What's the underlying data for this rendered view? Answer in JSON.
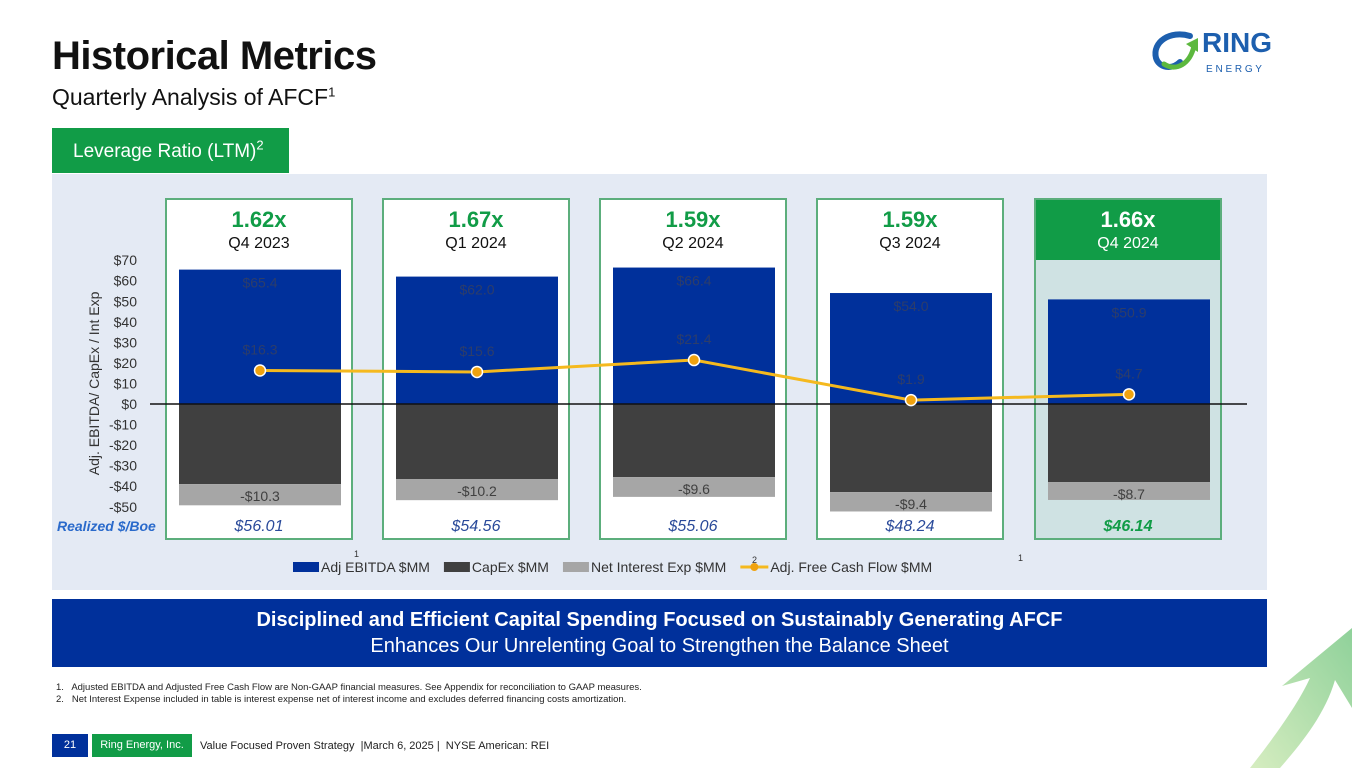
{
  "header": {
    "title": "Historical Metrics",
    "subtitle": "Quarterly Analysis of AFCF",
    "subtitle_sup": "1",
    "tag": "Leverage Ratio (LTM)",
    "tag_sup": "2"
  },
  "logo": {
    "icon": "ring-arrow-icon",
    "name": "RING",
    "tagline": "E N E R G Y"
  },
  "quarters": [
    {
      "leverage": "1.62x",
      "label": "Q4 2023",
      "realized": "$56.01",
      "highlight": false
    },
    {
      "leverage": "1.67x",
      "label": "Q1 2024",
      "realized": "$54.56",
      "highlight": false
    },
    {
      "leverage": "1.59x",
      "label": "Q2 2024",
      "realized": "$55.06",
      "highlight": false
    },
    {
      "leverage": "1.59x",
      "label": "Q3 2024",
      "realized": "$48.24",
      "highlight": false
    },
    {
      "leverage": "1.66x",
      "label": "Q4 2024",
      "realized": "$46.14",
      "highlight": true
    }
  ],
  "realized_label": "Realized $/Boe",
  "chart_data": {
    "type": "bar",
    "categories": [
      "Q4 2023",
      "Q1 2024",
      "Q2 2024",
      "Q3 2024",
      "Q4 2024"
    ],
    "ylabel": "Adj. EBITDA/ CapEx / Int Exp",
    "ylim": [
      -50,
      70
    ],
    "yticks": [
      70,
      60,
      50,
      40,
      30,
      20,
      10,
      0,
      -10,
      -20,
      -30,
      -40,
      -50
    ],
    "ytick_labels": [
      "$70",
      "$60",
      "$50",
      "$40",
      "$30",
      "$20",
      "$10",
      "$0",
      "-$10",
      "-$20",
      "-$30",
      "-$40",
      "-$50"
    ],
    "stacked": true,
    "series": [
      {
        "name": "Adj EBITDA $MM",
        "kind": "bar",
        "color": "#00309b",
        "values": [
          65.4,
          62.0,
          66.4,
          54.0,
          50.9
        ],
        "labels": [
          "$65.4",
          "$62.0",
          "$66.4",
          "$54.0",
          "$50.9"
        ]
      },
      {
        "name": "CapEx $MM",
        "kind": "bar",
        "color": "#404040",
        "values": [
          -39.0,
          -36.6,
          -35.6,
          -42.9,
          -38.0
        ],
        "labels": [
          "",
          "",
          "",
          "",
          ""
        ]
      },
      {
        "name": "Net Interest Exp $MM",
        "kind": "bar",
        "color": "#a6a6a6",
        "values": [
          -10.3,
          -10.2,
          -9.6,
          -9.4,
          -8.7
        ],
        "labels": [
          "-$10.3",
          "-$10.2",
          "-$9.6",
          "-$9.4",
          "-$8.7"
        ]
      },
      {
        "name": "Adj. Free Cash Flow $MM",
        "kind": "line",
        "color": "#f5b91e",
        "values": [
          16.3,
          15.6,
          21.4,
          1.9,
          4.7
        ],
        "labels": [
          "$16.3",
          "$15.6",
          "$21.4",
          "$1.9",
          "$4.7"
        ]
      }
    ],
    "legend_position": "bottom",
    "legend_superscripts": [
      "1",
      "2",
      "1"
    ]
  },
  "banner": {
    "line1": "Disciplined and Efficient Capital Spending Focused on Sustainably Generating AFCF",
    "line2": "Enhances Our Unrelenting Goal to Strengthen the Balance Sheet"
  },
  "footnotes": [
    "1.   Adjusted EBITDA and Adjusted Free Cash Flow are Non-GAAP financial measures. See Appendix for reconciliation to GAAP measures.",
    "2.   Net Interest Expense included in table is interest expense net of interest income and excludes deferred financing costs amortization."
  ],
  "footer": {
    "page": "21",
    "company": "Ring Energy, Inc.",
    "text": "Value Focused Proven Strategy  |March 6, 2025 |  NYSE American: REI"
  }
}
